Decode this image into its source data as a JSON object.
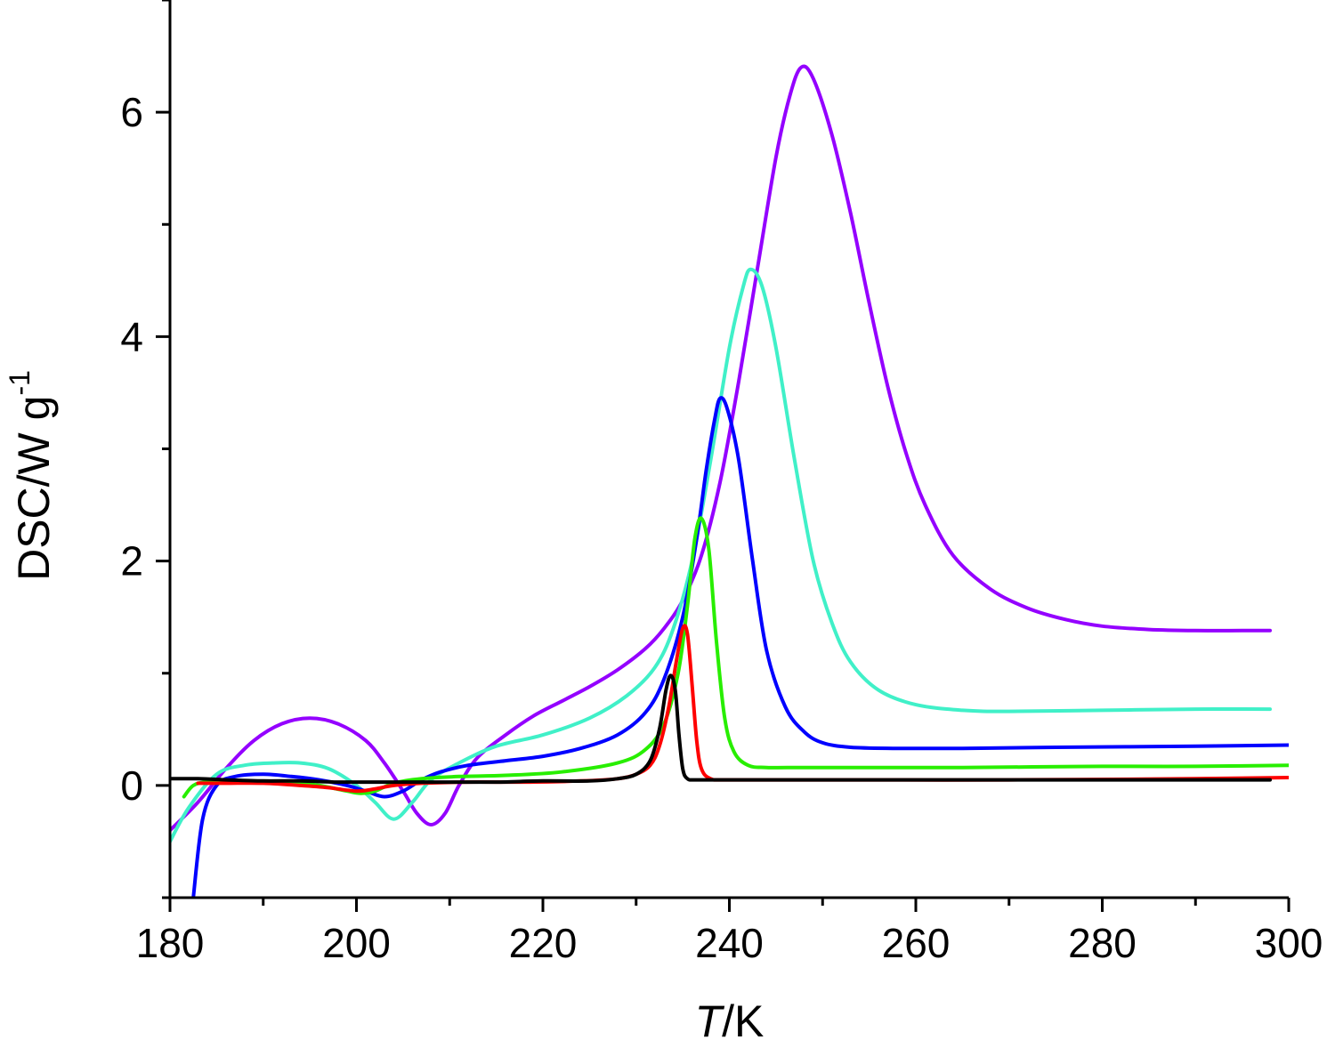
{
  "chart_data": {
    "type": "line",
    "xlabel": "T/K",
    "ylabel": "DSC/W g-1",
    "xlim": [
      180,
      300
    ],
    "ylim": [
      -1,
      7
    ],
    "x_major_ticks": [
      180,
      200,
      220,
      240,
      260,
      280,
      300
    ],
    "x_minor_ticks": [
      190,
      210,
      230,
      250,
      270,
      290
    ],
    "y_major_ticks": [
      0,
      2,
      4,
      6
    ],
    "y_minor_ticks": [
      -1,
      1,
      3,
      5,
      7
    ],
    "x_tick_labels": [
      "180",
      "200",
      "220",
      "240",
      "260",
      "280",
      "300"
    ],
    "y_tick_labels": [
      "0",
      "2",
      "4",
      "6"
    ],
    "xlabel_parts": {
      "italic": "T",
      "rest": "/K"
    },
    "ylabel_parts": {
      "main": "DSC/W g",
      "sup": "-1"
    },
    "series": [
      {
        "color": "#9400ff",
        "x": [
          180,
          183,
          186,
          189,
          192,
          195,
          198,
          201,
          203,
          205,
          206.5,
          208,
          209.5,
          211,
          213,
          216,
          219,
          222,
          225,
          228,
          231,
          233,
          235,
          237,
          239,
          241,
          243,
          245,
          246.5,
          247.7,
          249,
          251,
          253,
          255,
          257,
          259,
          261,
          264,
          268,
          272,
          276,
          280,
          285,
          290,
          295,
          298
        ],
        "y": [
          -0.4,
          -0.15,
          0.15,
          0.4,
          0.55,
          0.6,
          0.55,
          0.4,
          0.2,
          -0.05,
          -0.25,
          -0.35,
          -0.25,
          0,
          0.25,
          0.45,
          0.62,
          0.75,
          0.88,
          1.03,
          1.22,
          1.4,
          1.65,
          2.05,
          2.7,
          3.6,
          4.6,
          5.6,
          6.15,
          6.4,
          6.3,
          5.8,
          5.1,
          4.3,
          3.55,
          2.95,
          2.5,
          2.05,
          1.75,
          1.58,
          1.48,
          1.42,
          1.39,
          1.38,
          1.38,
          1.38
        ]
      },
      {
        "color": "#40f0c8",
        "x": [
          180,
          182,
          185,
          188,
          191,
          194,
          197,
          200,
          202,
          204,
          206,
          208,
          211,
          215,
          220,
          225,
          229,
          232,
          234,
          236,
          238,
          240,
          241.5,
          242.3,
          243.5,
          245,
          247,
          249,
          251,
          253,
          256,
          260,
          265,
          270,
          280,
          290,
          298
        ],
        "y": [
          -0.5,
          -0.2,
          0.1,
          0.18,
          0.2,
          0.2,
          0.15,
          0.0,
          -0.15,
          -0.3,
          -0.15,
          0.05,
          0.2,
          0.35,
          0.45,
          0.6,
          0.8,
          1.05,
          1.4,
          2.0,
          2.9,
          3.9,
          4.45,
          4.6,
          4.45,
          3.9,
          2.9,
          2.0,
          1.45,
          1.1,
          0.85,
          0.72,
          0.67,
          0.66,
          0.67,
          0.68,
          0.68
        ]
      },
      {
        "color": "#0000ff",
        "x": [
          182.5,
          183.5,
          185,
          187,
          190,
          193,
          196,
          199,
          201,
          203,
          205,
          207,
          209,
          212,
          216,
          220,
          224,
          228,
          231,
          233,
          235,
          236.5,
          237.5,
          238.4,
          239,
          239.8,
          241,
          242.5,
          244,
          246,
          248,
          250,
          253,
          258,
          265,
          275,
          290,
          300
        ],
        "y": [
          -1.0,
          -0.3,
          0.0,
          0.08,
          0.1,
          0.08,
          0.05,
          0.0,
          -0.05,
          -0.1,
          -0.05,
          0.05,
          0.12,
          0.18,
          0.22,
          0.26,
          0.33,
          0.45,
          0.65,
          0.95,
          1.5,
          2.2,
          2.8,
          3.25,
          3.45,
          3.35,
          2.9,
          2.0,
          1.2,
          0.7,
          0.48,
          0.38,
          0.34,
          0.33,
          0.33,
          0.34,
          0.35,
          0.36
        ]
      },
      {
        "color": "#28ee00",
        "x": [
          181.5,
          182.5,
          184,
          187,
          190,
          193,
          196,
          199,
          200.5,
          202,
          204,
          207,
          211,
          216,
          222,
          228,
          231,
          233,
          234.5,
          235.5,
          236.3,
          237,
          237.8,
          238.6,
          239.5,
          240.5,
          242,
          244,
          248,
          255,
          265,
          280,
          290,
          300
        ],
        "y": [
          -0.1,
          0.0,
          0.03,
          0.03,
          0.03,
          0.03,
          0.0,
          -0.05,
          -0.07,
          -0.05,
          0.02,
          0.06,
          0.08,
          0.09,
          0.12,
          0.2,
          0.32,
          0.55,
          1.0,
          1.6,
          2.2,
          2.38,
          2.1,
          1.3,
          0.6,
          0.3,
          0.18,
          0.16,
          0.16,
          0.16,
          0.16,
          0.17,
          0.17,
          0.18
        ]
      },
      {
        "color": "#ff0000",
        "x": [
          183,
          186,
          190,
          194,
          197,
          200,
          202,
          204,
          207,
          212,
          218,
          224,
          228,
          230,
          231.5,
          232.5,
          233.5,
          234.3,
          235,
          235.5,
          236,
          236.5,
          237,
          238,
          240,
          250,
          270,
          290,
          300
        ],
        "y": [
          0.02,
          0.02,
          0.02,
          0.0,
          -0.02,
          -0.05,
          -0.03,
          0.0,
          0.02,
          0.03,
          0.03,
          0.04,
          0.06,
          0.1,
          0.18,
          0.35,
          0.7,
          1.1,
          1.4,
          1.35,
          0.9,
          0.4,
          0.15,
          0.06,
          0.05,
          0.05,
          0.05,
          0.06,
          0.07
        ]
      },
      {
        "color": "#000000",
        "x": [
          180,
          183,
          186,
          190,
          194,
          198,
          202,
          206,
          210,
          215,
          220,
          225,
          228,
          230,
          231.5,
          232.5,
          233.2,
          233.7,
          234.2,
          234.6,
          235,
          235.5,
          236.5,
          240,
          250,
          270,
          290,
          298
        ],
        "y": [
          0.06,
          0.06,
          0.05,
          0.04,
          0.04,
          0.03,
          0.03,
          0.03,
          0.03,
          0.03,
          0.04,
          0.04,
          0.06,
          0.1,
          0.22,
          0.5,
          0.85,
          0.98,
          0.85,
          0.45,
          0.15,
          0.06,
          0.05,
          0.05,
          0.05,
          0.05,
          0.05,
          0.05
        ]
      }
    ]
  }
}
